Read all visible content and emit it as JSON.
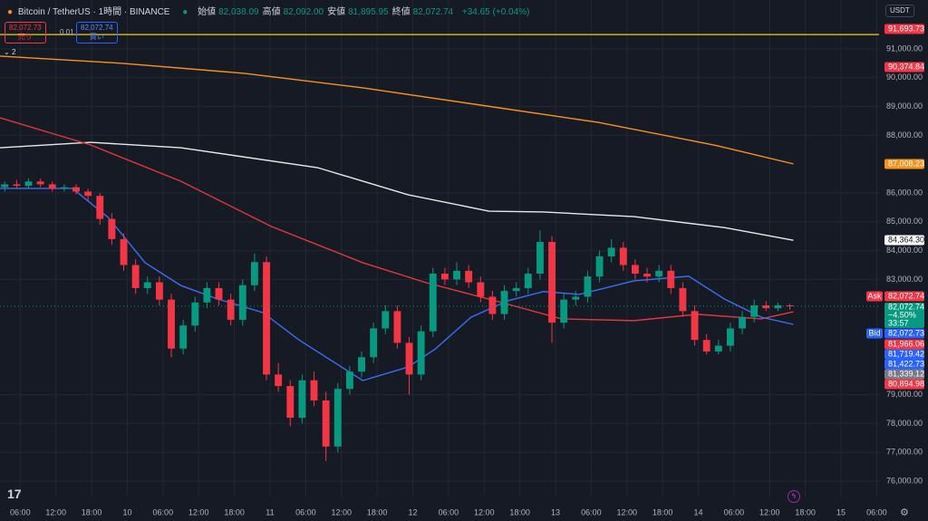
{
  "header": {
    "symbol": "Bitcoin / TetherUS · 1時間 · BINANCE",
    "ohlc": [
      {
        "key": "始値",
        "value": "82,038.09"
      },
      {
        "key": "高値",
        "value": "82,092.00"
      },
      {
        "key": "安値",
        "value": "81,895.95"
      },
      {
        "key": "終値",
        "value": "82,072.74"
      }
    ],
    "change": "+34.65 (+0.04%)",
    "currency": "USDT"
  },
  "trade": {
    "sell_price": "82,072.73",
    "sell_label": "売り",
    "spread": "0.01",
    "buy_price": "82,072.74",
    "buy_label": "買い",
    "indicator_count": "2"
  },
  "chart_data": {
    "type": "candlestick",
    "up_color": "#089981",
    "down_color": "#f23645",
    "grid": true,
    "xlim": [
      -0.4,
      73.5
    ],
    "ylim": [
      75465,
      92698
    ],
    "yticks": [
      {
        "value": 91000,
        "label": "91,000.00"
      },
      {
        "value": 90000,
        "label": "90,000.00"
      },
      {
        "value": 89000,
        "label": "89,000.00"
      },
      {
        "value": 88000,
        "label": "88,000.00"
      },
      {
        "value": 86000,
        "label": "86,000.00"
      },
      {
        "value": 85000,
        "label": "85,000.00"
      },
      {
        "value": 84000,
        "label": "84,000.00"
      },
      {
        "value": 83000,
        "label": "83,000.00"
      },
      {
        "value": 79000,
        "label": "79,000.00"
      },
      {
        "value": 78000,
        "label": "78,000.00"
      },
      {
        "value": 77000,
        "label": "77,000.00"
      },
      {
        "value": 76000,
        "label": "76,000.00"
      }
    ],
    "xticks": [
      {
        "value": 1.3,
        "label": "06:00"
      },
      {
        "value": 4.3,
        "label": "12:00"
      },
      {
        "value": 7.3,
        "label": "18:00"
      },
      {
        "value": 10.3,
        "label": "10"
      },
      {
        "value": 13.3,
        "label": "06:00"
      },
      {
        "value": 16.3,
        "label": "12:00"
      },
      {
        "value": 19.3,
        "label": "18:00"
      },
      {
        "value": 22.3,
        "label": "11"
      },
      {
        "value": 25.3,
        "label": "06:00"
      },
      {
        "value": 28.3,
        "label": "12:00"
      },
      {
        "value": 31.3,
        "label": "18:00"
      },
      {
        "value": 34.3,
        "label": "12"
      },
      {
        "value": 37.3,
        "label": "06:00"
      },
      {
        "value": 40.3,
        "label": "12:00"
      },
      {
        "value": 43.3,
        "label": "18:00"
      },
      {
        "value": 46.3,
        "label": "13"
      },
      {
        "value": 49.3,
        "label": "06:00"
      },
      {
        "value": 52.3,
        "label": "12:00"
      },
      {
        "value": 55.3,
        "label": "18:00"
      },
      {
        "value": 58.3,
        "label": "14"
      },
      {
        "value": 61.3,
        "label": "06:00"
      },
      {
        "value": 64.3,
        "label": "12:00"
      },
      {
        "value": 67.3,
        "label": "18:00"
      },
      {
        "value": 70.3,
        "label": "15"
      },
      {
        "value": 73.3,
        "label": "06:00"
      }
    ],
    "candles": [
      [
        86200,
        86400,
        86050,
        86300
      ],
      [
        86300,
        86450,
        86150,
        86250
      ],
      [
        86250,
        86500,
        86150,
        86400
      ],
      [
        86400,
        86500,
        86200,
        86300
      ],
      [
        86300,
        86400,
        86050,
        86150
      ],
      [
        86150,
        86300,
        86050,
        86200
      ],
      [
        86200,
        86300,
        85950,
        86050
      ],
      [
        86050,
        86150,
        85700,
        85900
      ],
      [
        85900,
        86000,
        84900,
        85100
      ],
      [
        85100,
        85300,
        84200,
        84400
      ],
      [
        84400,
        84600,
        83300,
        83500
      ],
      [
        83500,
        83700,
        82500,
        82700
      ],
      [
        82700,
        83100,
        82500,
        82900
      ],
      [
        82900,
        83100,
        82100,
        82300
      ],
      [
        82300,
        82500,
        80300,
        80600
      ],
      [
        80600,
        81600,
        80400,
        81400
      ],
      [
        81400,
        82400,
        81200,
        82200
      ],
      [
        82200,
        82900,
        82000,
        82700
      ],
      [
        82700,
        82900,
        82100,
        82300
      ],
      [
        82300,
        82500,
        81400,
        81600
      ],
      [
        81600,
        83000,
        81400,
        82800
      ],
      [
        82800,
        83900,
        82600,
        83600
      ],
      [
        83600,
        83800,
        79500,
        79700
      ],
      [
        79700,
        80100,
        79100,
        79300
      ],
      [
        79300,
        79500,
        77900,
        78200
      ],
      [
        78200,
        79700,
        78000,
        79500
      ],
      [
        79500,
        79800,
        78600,
        78800
      ],
      [
        78800,
        79100,
        76700,
        77200
      ],
      [
        77200,
        79400,
        77000,
        79200
      ],
      [
        79200,
        80000,
        79000,
        79800
      ],
      [
        79800,
        80500,
        79600,
        80300
      ],
      [
        80300,
        81500,
        80100,
        81300
      ],
      [
        81300,
        82100,
        81100,
        81900
      ],
      [
        81900,
        82100,
        80600,
        80800
      ],
      [
        80800,
        81000,
        79000,
        79700
      ],
      [
        79700,
        81400,
        79500,
        81200
      ],
      [
        81200,
        83400,
        81000,
        83200
      ],
      [
        83200,
        83400,
        82800,
        83000
      ],
      [
        83000,
        83600,
        82800,
        83300
      ],
      [
        83300,
        83500,
        82700,
        82900
      ],
      [
        82900,
        83100,
        82200,
        82400
      ],
      [
        82400,
        82600,
        81600,
        81800
      ],
      [
        81800,
        82800,
        81600,
        82600
      ],
      [
        82600,
        82900,
        82400,
        82700
      ],
      [
        82700,
        83400,
        82500,
        83200
      ],
      [
        83200,
        84700,
        83000,
        84300
      ],
      [
        84300,
        84500,
        80800,
        81500
      ],
      [
        81500,
        82500,
        81300,
        82300
      ],
      [
        82300,
        82600,
        82100,
        82400
      ],
      [
        82400,
        83300,
        82200,
        83100
      ],
      [
        83100,
        84000,
        82900,
        83800
      ],
      [
        83800,
        84400,
        83600,
        84100
      ],
      [
        84100,
        84300,
        83300,
        83500
      ],
      [
        83500,
        83700,
        83000,
        83200
      ],
      [
        83200,
        83400,
        82900,
        83100
      ],
      [
        83100,
        83500,
        82900,
        83300
      ],
      [
        83300,
        83500,
        82500,
        82700
      ],
      [
        82700,
        82900,
        81700,
        81900
      ],
      [
        81900,
        82100,
        80700,
        80900
      ],
      [
        80900,
        81100,
        80400,
        80500
      ],
      [
        80500,
        80900,
        80400,
        80700
      ],
      [
        80700,
        81500,
        80500,
        81300
      ],
      [
        81300,
        81900,
        81100,
        81700
      ],
      [
        81700,
        82300,
        81500,
        82100
      ],
      [
        82100,
        82250,
        81900,
        82000
      ],
      [
        82000,
        82200,
        81900,
        82100
      ],
      [
        82100,
        82150,
        81950,
        82072.74
      ]
    ],
    "series": [
      {
        "color": "#f7931a",
        "x": [
          -0.4,
          9.9,
          20.2,
          30.1,
          40,
          49.9,
          59.8,
          66.3
        ],
        "values": [
          90750,
          90500,
          90150,
          89650,
          89050,
          88450,
          87650,
          87010
        ]
      },
      {
        "color": "#e8e8e8",
        "x": [
          -0.4,
          7.2,
          14.8,
          26.3,
          33.9,
          40.7,
          45.3,
          52.9,
          60.5,
          66.3
        ],
        "values": [
          87570,
          87760,
          87570,
          86880,
          85940,
          85370,
          85340,
          85180,
          84800,
          84360
        ]
      },
      {
        "color": "#e0383e",
        "x": [
          -0.4,
          7.2,
          14.8,
          22.4,
          30.1,
          35.4,
          41.5,
          46.8,
          52.9,
          58.2,
          63.6,
          66.3
        ],
        "values": [
          88610,
          87670,
          86410,
          84840,
          83580,
          82890,
          82230,
          81630,
          81570,
          81790,
          81630,
          81880
        ]
      },
      {
        "color": "#3b6ef0",
        "x": [
          -0.4,
          5.7,
          8.7,
          11.8,
          14.8,
          17.9,
          21.7,
          24.7,
          30.1,
          33.9,
          36.2,
          39.2,
          42.3,
          45.3,
          48.3,
          52.9,
          57.5,
          60.5,
          63.6,
          66.3
        ],
        "values": [
          86160,
          86160,
          85150,
          83580,
          82790,
          82320,
          81850,
          80910,
          79490,
          79960,
          80590,
          81690,
          82260,
          82580,
          82480,
          82950,
          83110,
          82320,
          81690,
          81440
        ]
      }
    ],
    "hline": {
      "value": 91500,
      "color": "#f0d000"
    },
    "price_tags": [
      {
        "label": "91,693.73",
        "color": "#f23645"
      },
      {
        "label": "90,374.84",
        "color": "#f23645"
      },
      {
        "label": "87,008.23",
        "color": "#f7931a"
      },
      {
        "label": "84,364.30",
        "color": "#ffffff"
      },
      {
        "label": "82,072.74",
        "color": "#f23645",
        "tag": "Ask"
      },
      {
        "label": "82,072.73",
        "color": "#2962ff",
        "tag": "Bid"
      },
      {
        "label": "81,966.06",
        "color": "#f23645"
      },
      {
        "label": "81,719.42",
        "color": "#2962ff"
      },
      {
        "label": "81,422.73",
        "color": "#2962ff"
      },
      {
        "label": "81,339.12",
        "color": "#787b86"
      },
      {
        "label": "80,894.98",
        "color": "#f23645"
      }
    ],
    "last": {
      "price": "82,072.74",
      "change": "−4.50%",
      "countdown": "33:57",
      "color": "#089981"
    }
  }
}
